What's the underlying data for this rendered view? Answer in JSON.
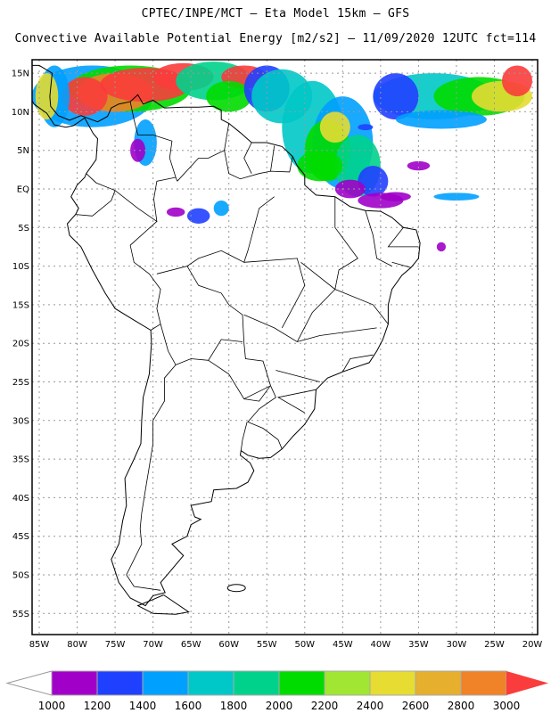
{
  "header": {
    "title": "CPTEC/INPE/MCT –  Eta Model 15km – GFS",
    "subtitle": "Convective Available Potential Energy [m2/s2] – 11/09/2020 12UTC fct=114"
  },
  "map": {
    "lat_labels": [
      "15N",
      "10N",
      "5N",
      "EQ",
      "5S",
      "10S",
      "15S",
      "20S",
      "25S",
      "30S",
      "35S",
      "40S",
      "45S",
      "50S",
      "55S"
    ],
    "lon_labels": [
      "85W",
      "80W",
      "75W",
      "70W",
      "65W",
      "60W",
      "55W",
      "50W",
      "45W",
      "40W",
      "35W",
      "30W",
      "25W",
      "20W"
    ]
  },
  "colorbar": {
    "labels": [
      "1000",
      "1200",
      "1400",
      "1600",
      "1800",
      "2000",
      "2200",
      "2400",
      "2600",
      "2800",
      "3000"
    ],
    "colors": [
      "#a000c8",
      "#2040ff",
      "#00a0ff",
      "#00c8c8",
      "#00d28c",
      "#00dc00",
      "#a0e632",
      "#e6dc32",
      "#e6af2d",
      "#f08228",
      "#fa3c3c"
    ]
  }
}
